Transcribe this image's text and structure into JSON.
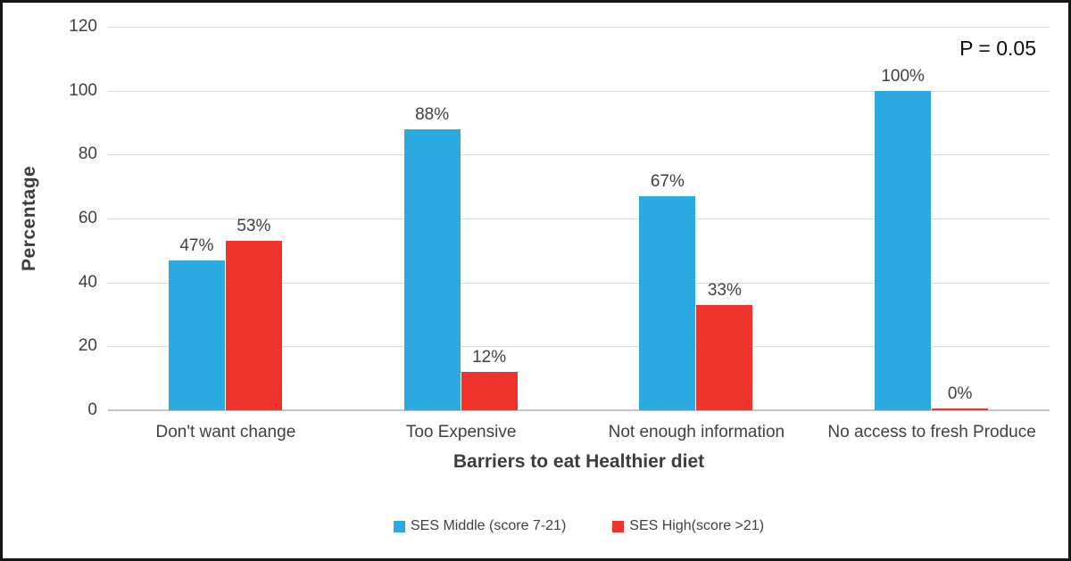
{
  "chart_data": {
    "type": "bar",
    "title": "",
    "categories": [
      "Don't want change",
      "Too Expensive",
      "Not enough information",
      "No access to fresh Produce"
    ],
    "series": [
      {
        "name": "SES Middle (score 7-21)",
        "color": "#2BAAE2",
        "values": [
          47,
          88,
          67,
          100
        ],
        "labels": [
          "47%",
          "88%",
          "67%",
          "100%"
        ]
      },
      {
        "name": "SES High(score >21)",
        "color": "#EE342D",
        "values": [
          53,
          12,
          33,
          0
        ],
        "labels": [
          "53%",
          "12%",
          "33%",
          "0%"
        ]
      }
    ],
    "xlabel": "Barriers to eat Healthier diet",
    "ylabel": "Percentage",
    "ylim": [
      0,
      120
    ],
    "ytick_interval": 20,
    "yticks": [
      "120",
      "100",
      "80",
      "60",
      "40",
      "20",
      "0"
    ],
    "grid": true,
    "legend_position": "bottom",
    "annotation": "P = 0.05"
  },
  "colors": {
    "gridline": "#D9D9D9",
    "axis_text": "#404040",
    "frame_border": "#161616"
  }
}
